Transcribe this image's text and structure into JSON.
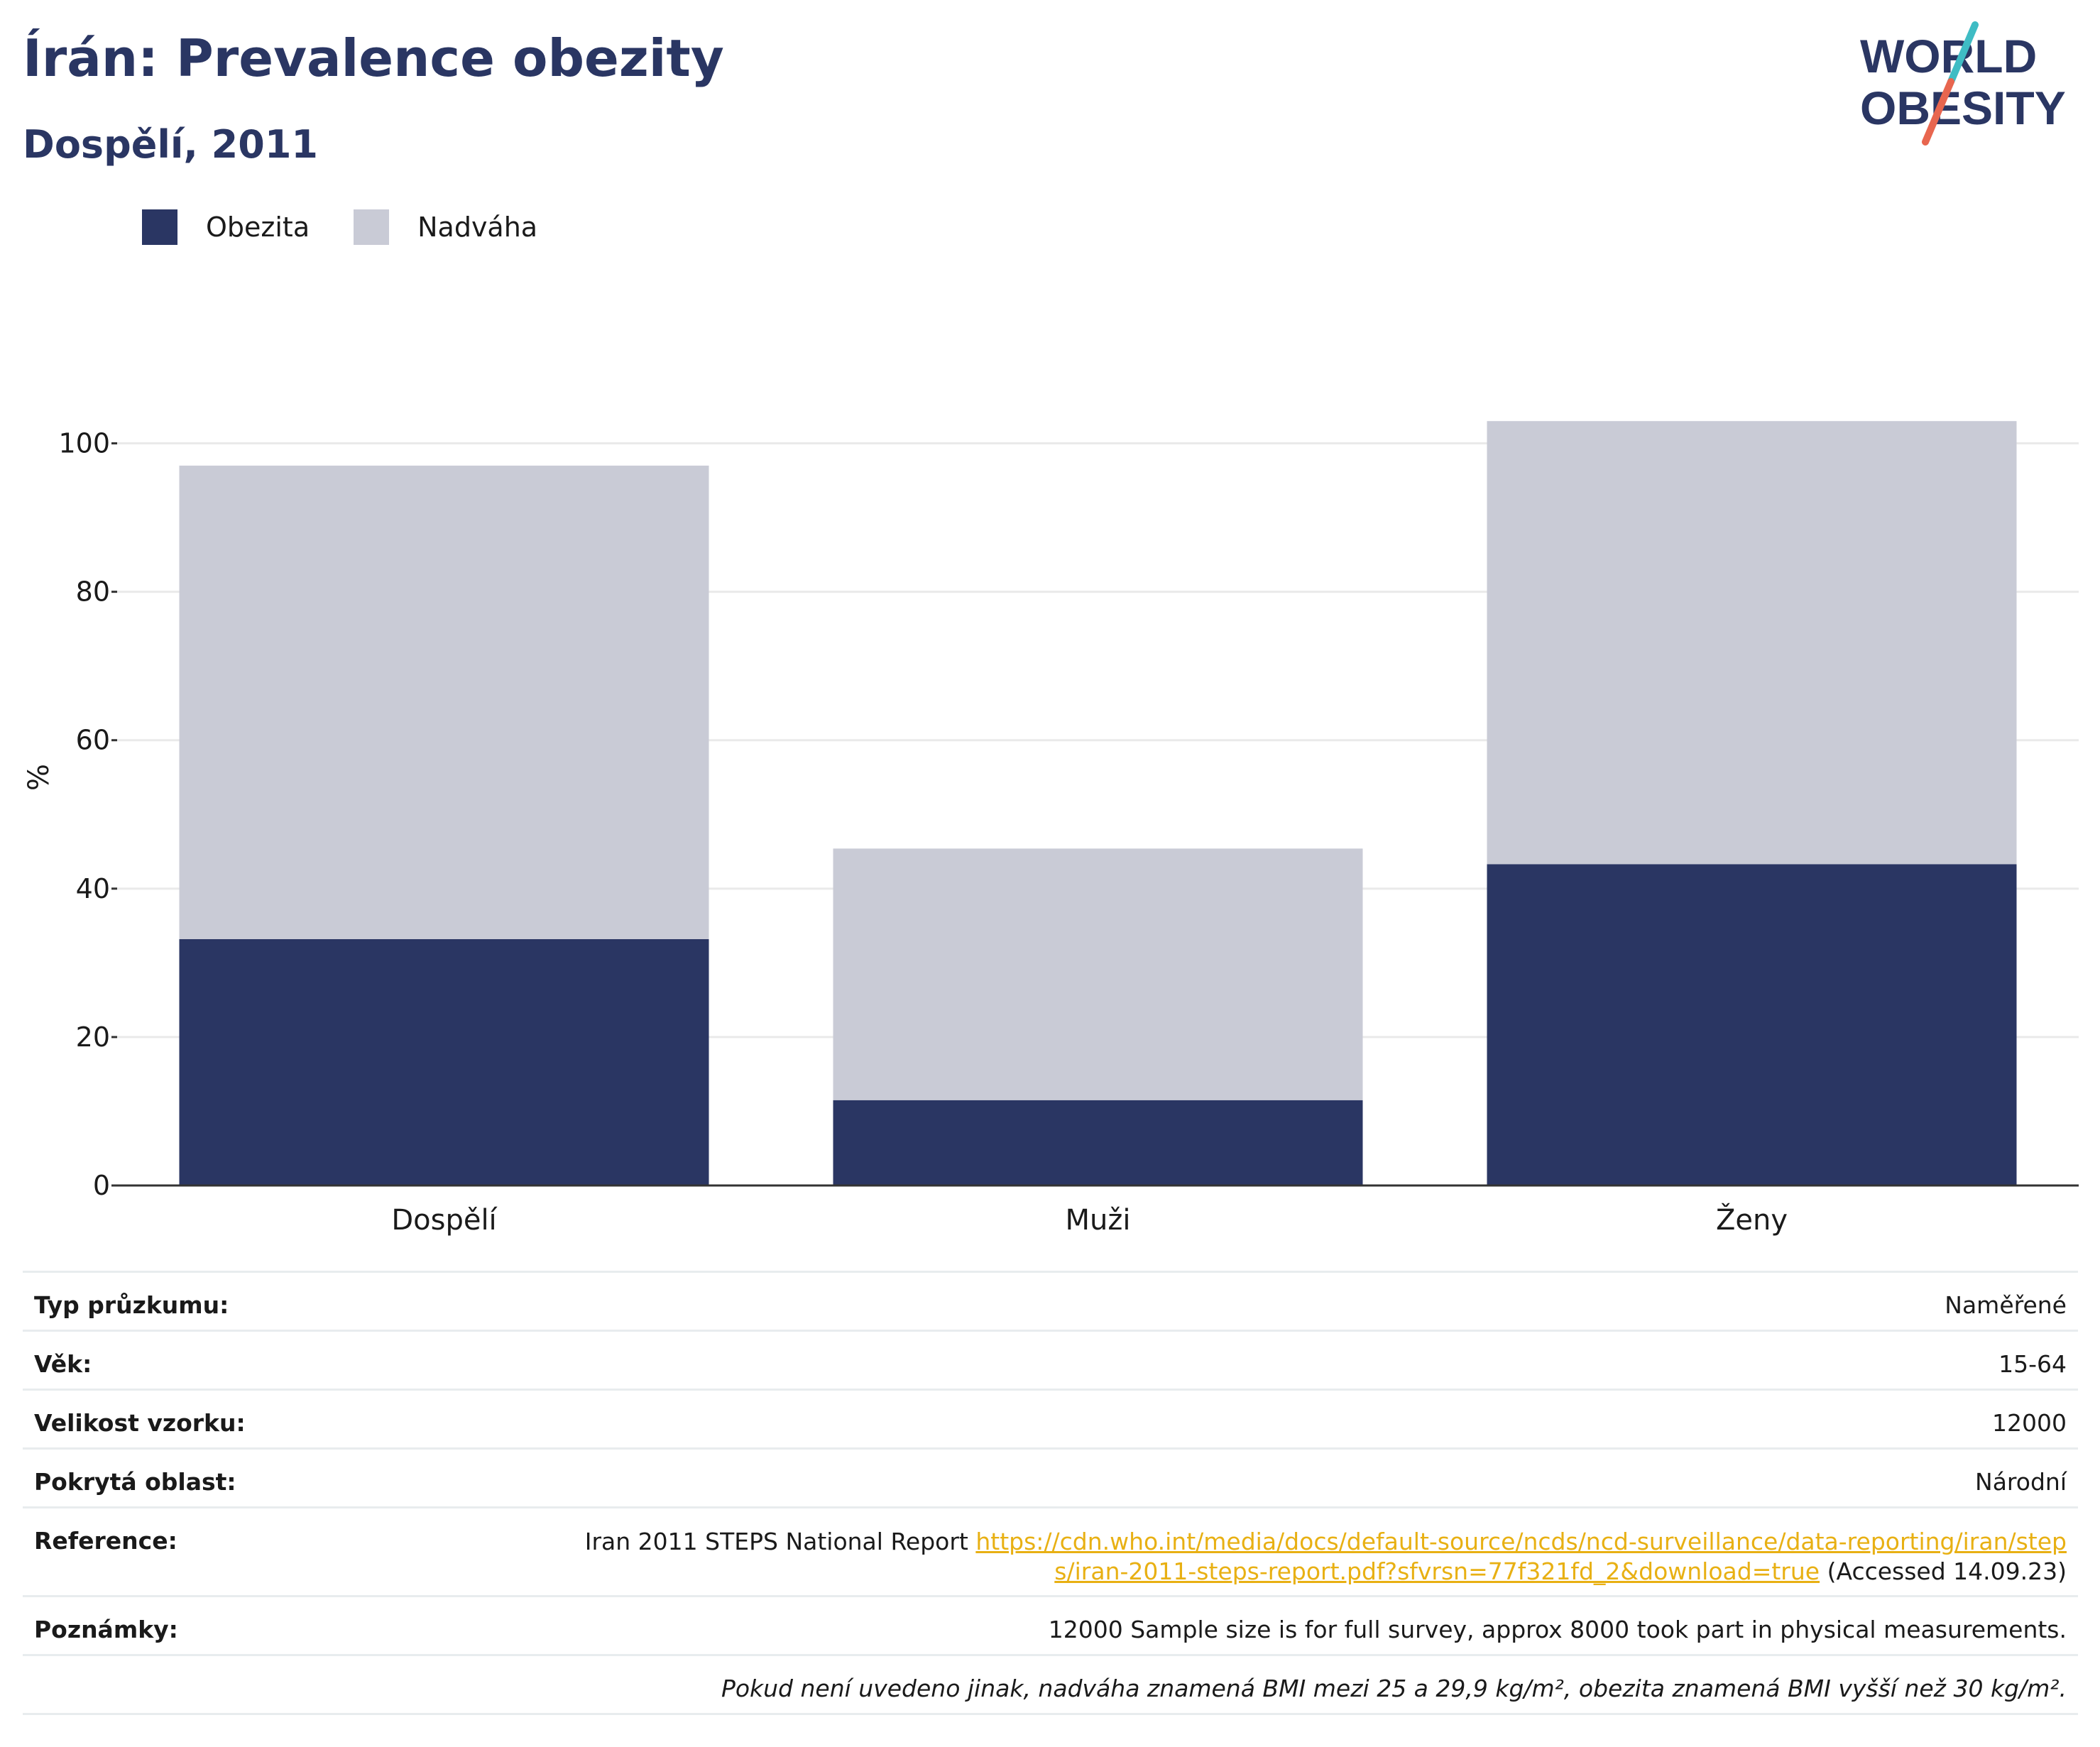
{
  "header": {
    "title": "Írán: Prevalence obezity",
    "subtitle": "Dospělí, 2011"
  },
  "logo": {
    "line1": "WORLD",
    "line2": "OBESITY",
    "icon": "world-obesity-logo"
  },
  "colors": {
    "obesity": "#2a3663",
    "overweight": "#c9cbd6",
    "accent_teal": "#3fbcc4",
    "accent_red": "#e8664f",
    "link": "#e8b013"
  },
  "chart_data": {
    "type": "bar",
    "stacked": true,
    "categories": [
      "Dospělí",
      "Muži",
      "Ženy"
    ],
    "series": [
      {
        "name": "Obezita",
        "values": [
          33.2,
          11.5,
          43.3
        ]
      },
      {
        "name": "Nadváha",
        "values": [
          63.8,
          33.9,
          59.7
        ]
      }
    ],
    "ylabel": "%",
    "ylim": [
      0,
      110
    ],
    "yticks": [
      0,
      20,
      40,
      60,
      80,
      100
    ],
    "grid": true,
    "legend": "top-left"
  },
  "meta": {
    "survey_type_label": "Typ průzkumu:",
    "survey_type": "Naměřené",
    "age_label": "Věk:",
    "age": "15-64",
    "sample_label": "Velikost vzorku:",
    "sample": "12000",
    "area_label": "Pokrytá oblast:",
    "area": "Národní",
    "reference_label": "Reference:",
    "reference_text": "Iran 2011 STEPS National Report",
    "reference_url": "https://cdn.who.int/media/docs/default-source/ncds/ncd-surveillance/data-reporting/iran/steps/iran-2011-steps-report.pdf?sfvrsn=77f321fd_2&download=true",
    "reference_accessed": "(Accessed 14.09.23)",
    "notes_label": "Poznámky:",
    "notes": "12000 Sample size is for full survey, approx 8000 took part in physical measurements.",
    "definition": "Pokud není uvedeno jinak, nadváha znamená BMI mezi 25 a 29,9 kg/m², obezita znamená BMI vyšší než 30 kg/m²."
  }
}
